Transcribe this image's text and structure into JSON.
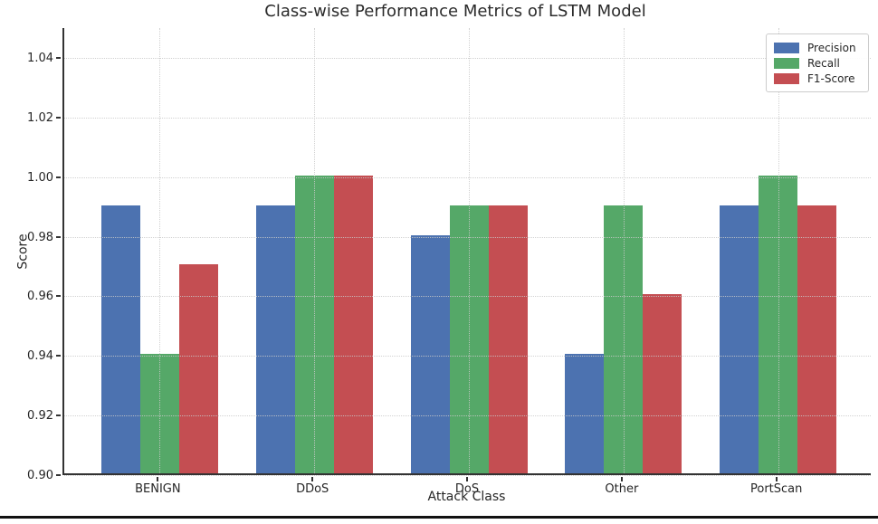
{
  "chart_data": {
    "type": "bar",
    "title": "Class-wise Performance Metrics of LSTM Model",
    "xlabel": "Attack Class",
    "ylabel": "Score",
    "categories": [
      "BENIGN",
      "DDoS",
      "DoS",
      "Other",
      "PortScan"
    ],
    "series": [
      {
        "name": "Precision",
        "color": "#4C72B0",
        "values": [
          0.99,
          0.99,
          0.98,
          0.94,
          0.99
        ]
      },
      {
        "name": "Recall",
        "color": "#55A868",
        "values": [
          0.94,
          1.0,
          0.99,
          0.99,
          1.0
        ]
      },
      {
        "name": "F1-Score",
        "color": "#C44E52",
        "values": [
          0.97,
          1.0,
          0.99,
          0.96,
          0.99
        ]
      }
    ],
    "ylim": [
      0.9,
      1.05
    ],
    "yticks": [
      0.9,
      0.92,
      0.94,
      0.96,
      0.98,
      1.0,
      1.02,
      1.04
    ],
    "ytick_labels": [
      "0.90",
      "0.92",
      "0.94",
      "0.96",
      "0.98",
      "1.00",
      "1.02",
      "1.04"
    ],
    "grid": "dotted",
    "legend_position": "upper right",
    "axis_color": "#333333",
    "grid_color": "#c9c9c9"
  }
}
